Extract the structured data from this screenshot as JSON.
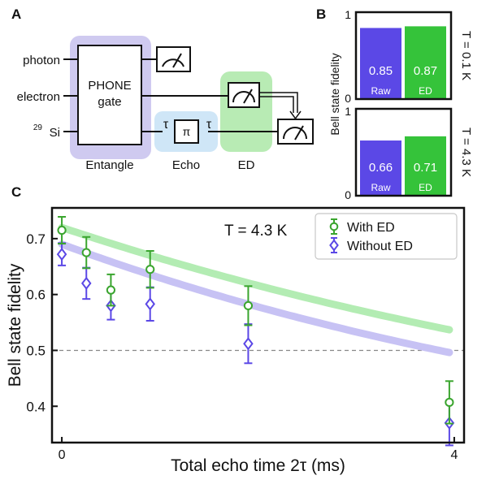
{
  "panel_labels": {
    "a": "A",
    "b": "B",
    "c": "C"
  },
  "circuit": {
    "inputs": [
      "photon",
      "electron",
      "Si"
    ],
    "si_superscript": "29",
    "gate_line1": "PHONE",
    "gate_line2": "gate",
    "tau": "τ",
    "pi": "π",
    "groups": {
      "entangle": "Entangle",
      "echo": "Echo",
      "ed": "ED"
    },
    "colors": {
      "entangle": "#cfcaf0",
      "echo": "#cfe6f7",
      "ed": "#b8ebb4"
    }
  },
  "fidelity_bars": {
    "ylabel": "Bell state fidelity",
    "tick_top": "1",
    "tick_bottom": "0",
    "panels": [
      {
        "temperature": "T = 0.1 K",
        "raw": 0.85,
        "ed": 0.87,
        "raw_label": "0.85",
        "ed_label": "0.87"
      },
      {
        "temperature": "T = 4.3 K",
        "raw": 0.66,
        "ed": 0.71,
        "raw_label": "0.66",
        "ed_label": "0.71"
      }
    ],
    "bar_names": {
      "raw": "Raw",
      "ed": "ED"
    },
    "colors": {
      "raw": "#5b48e6",
      "ed": "#35c33a"
    }
  },
  "chart_data": {
    "type": "scatter",
    "annotation": "T = 4.3 K",
    "xlabel": "Total echo time 2τ (ms)",
    "ylabel": "Bell state fidelity",
    "xlim": [
      -0.1,
      4.1
    ],
    "ylim": [
      0.335,
      0.755
    ],
    "xticks": [
      0,
      4
    ],
    "yticks": [
      0.4,
      0.5,
      0.6,
      0.7
    ],
    "yticklabels": [
      "0.4",
      "0.5",
      "0.6",
      "0.7"
    ],
    "reference_line": 0.5,
    "legend_position": "top-right",
    "series": [
      {
        "name": "With ED",
        "color": "#3aa52e",
        "fit_color": "#b3ecb3",
        "marker": "circle",
        "x": [
          0,
          0.25,
          0.5,
          0.9,
          1.9,
          3.95
        ],
        "y": [
          0.715,
          0.675,
          0.608,
          0.645,
          0.58,
          0.407
        ],
        "err": [
          0.024,
          0.028,
          0.028,
          0.033,
          0.035,
          0.038
        ],
        "fit": {
          "a": 0.72,
          "tau": 8.0
        }
      },
      {
        "name": "Without ED",
        "color": "#5b48e6",
        "fit_color": "#c7c2f4",
        "marker": "diamond",
        "x": [
          0,
          0.25,
          0.5,
          0.9,
          1.9,
          3.95
        ],
        "y": [
          0.672,
          0.62,
          0.58,
          0.583,
          0.512,
          0.37
        ],
        "err": [
          0.02,
          0.028,
          0.025,
          0.03,
          0.035,
          0.04
        ],
        "fit": {
          "a": 0.69,
          "tau": 6.8
        }
      }
    ]
  }
}
